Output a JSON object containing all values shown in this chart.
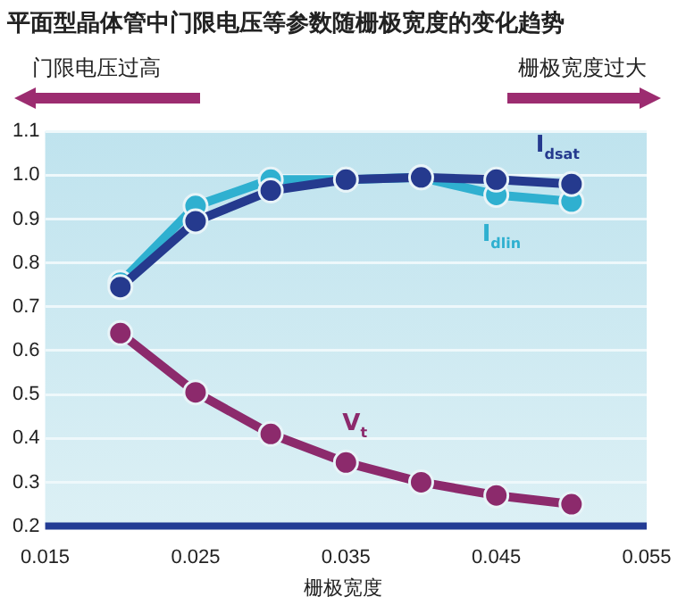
{
  "chart_data": {
    "type": "line",
    "title": "平面型晶体管中门限电压等参数随栅极宽度的变化趋势",
    "xlabel": "栅极宽度",
    "annotations": [
      "门限电压过高",
      "栅极宽度过大"
    ],
    "x": [
      0.02,
      0.025,
      0.03,
      0.035,
      0.04,
      0.045,
      0.05
    ],
    "series": [
      {
        "name": "I$_{dlin}$",
        "color": "#2fb0d0",
        "values": [
          0.755,
          0.93,
          0.99,
          0.99,
          0.995,
          0.955,
          0.94
        ]
      },
      {
        "name": "I$_{dsat}$",
        "color": "#253a8e",
        "values": [
          0.745,
          0.895,
          0.965,
          0.99,
          0.995,
          0.99,
          0.98
        ]
      },
      {
        "name": "V$_{t}$",
        "color": "#8c2a6c",
        "values": [
          0.64,
          0.505,
          0.41,
          0.345,
          0.3,
          0.27,
          0.25
        ]
      }
    ],
    "xlim": [
      0.015,
      0.055
    ],
    "xticks": [
      0.015,
      0.025,
      0.035,
      0.045,
      0.055
    ],
    "ylim": [
      0.2,
      1.1
    ],
    "yticks": [
      0.2,
      0.3,
      0.4,
      0.5,
      0.6,
      0.7,
      0.8,
      0.9,
      {
        "value": 1,
        "label": "1.0"
      },
      1.1
    ],
    "grid": "y",
    "legend": false,
    "marker": "circle",
    "line_style": "solid"
  }
}
